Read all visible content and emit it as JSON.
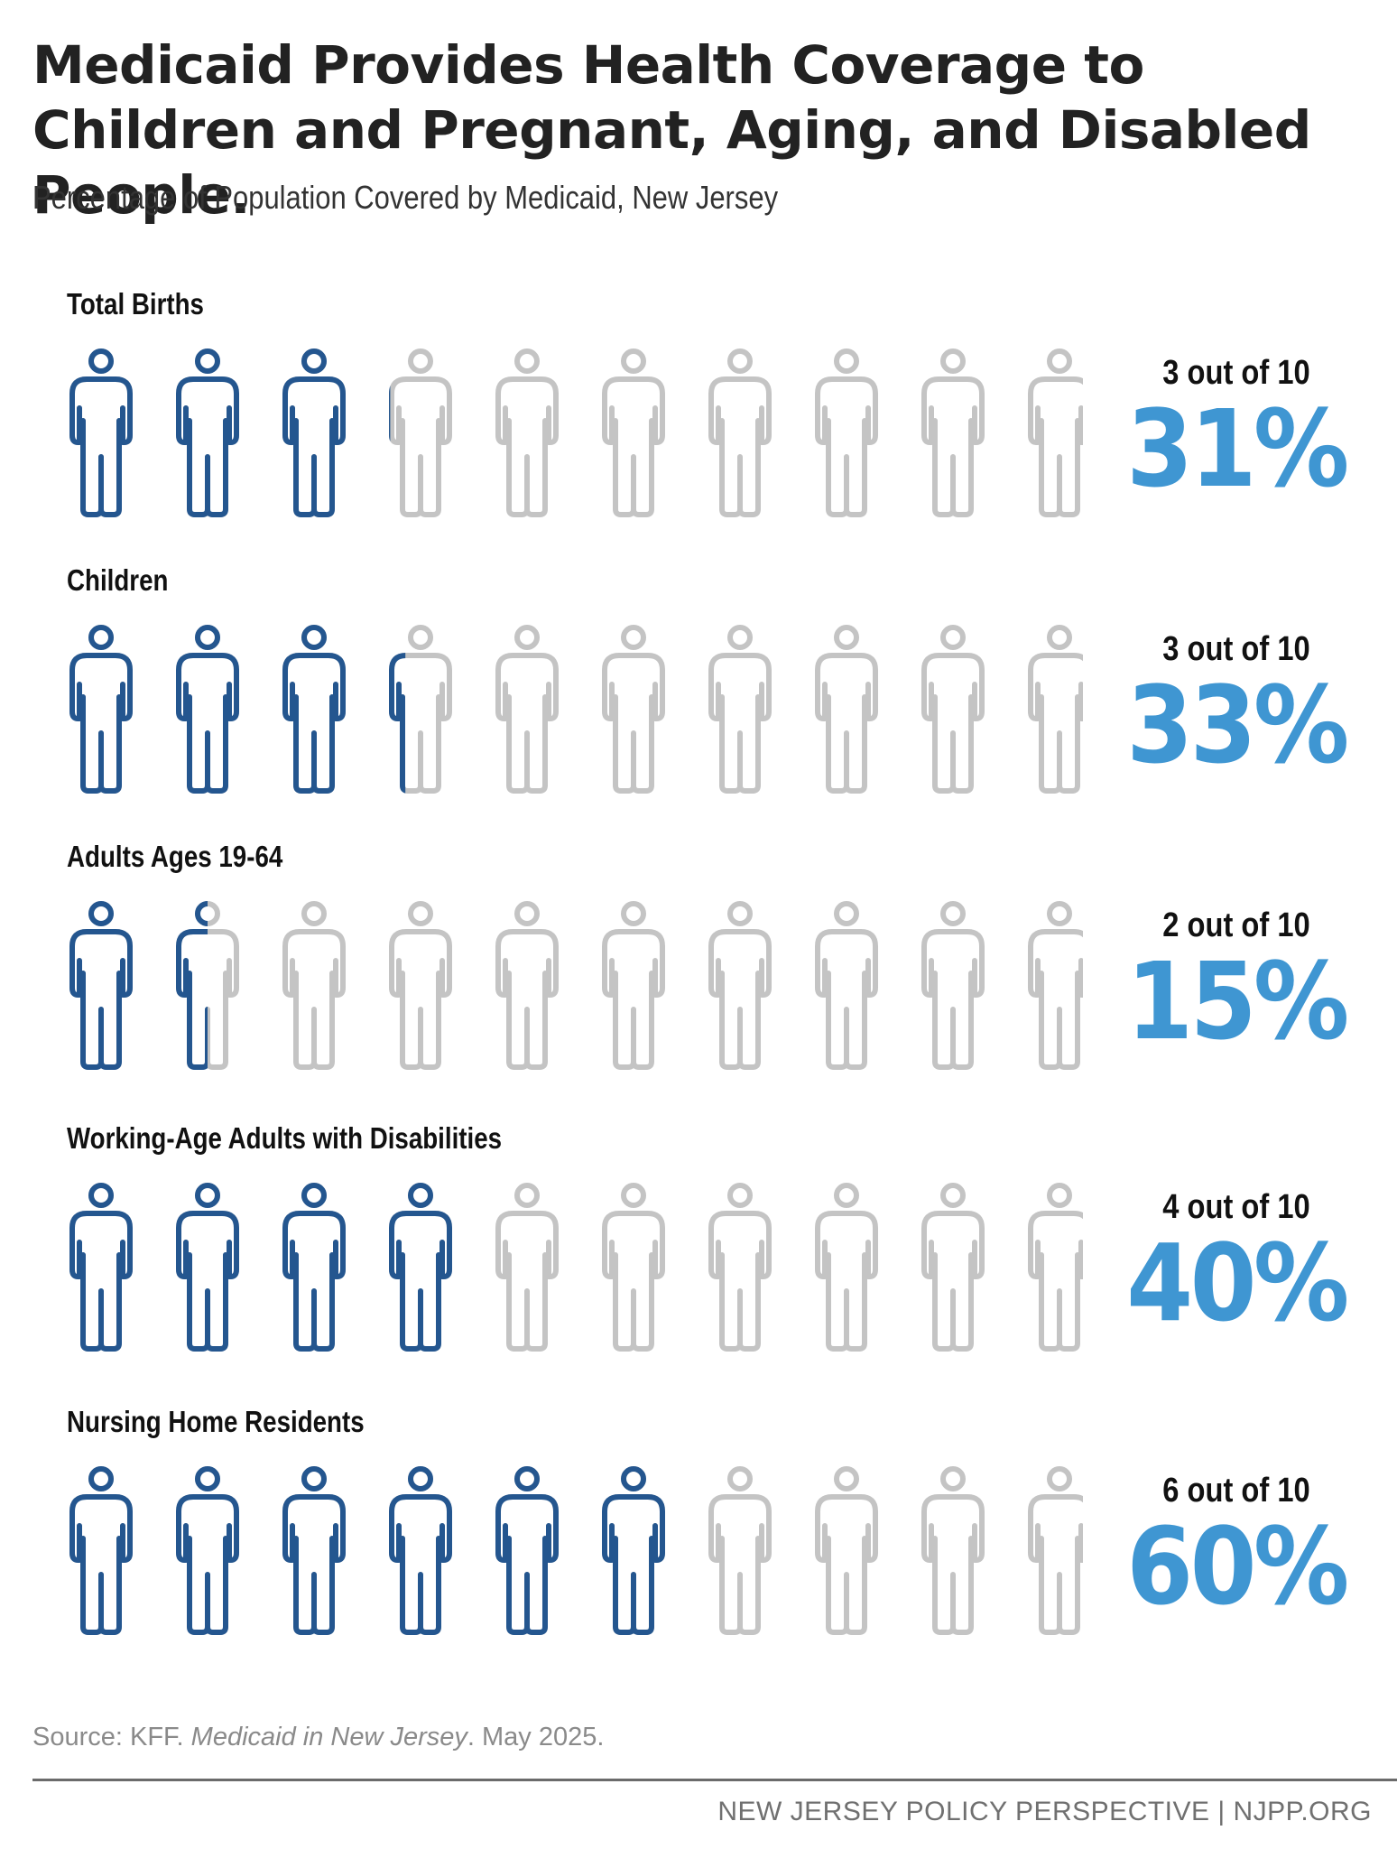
{
  "title": "Medicaid Provides Health Coverage to Children and Pregnant, Aging, and Disabled People.",
  "subtitle": "Percentage of Population Covered by Medicaid, New Jersey",
  "colors": {
    "covered": "#24568f",
    "uncovered": "#c4c4c4",
    "percent": "#3f96d2"
  },
  "chart_data": {
    "type": "isotype",
    "icons_per_row": 10,
    "icon": "person-icon",
    "rows": [
      {
        "label": "Total Births",
        "value": 31,
        "fraction": "3 out of 10",
        "percent": "31%"
      },
      {
        "label": "Children",
        "value": 33,
        "fraction": "3 out of 10",
        "percent": "33%"
      },
      {
        "label": "Adults Ages 19-64",
        "value": 15,
        "fraction": "2 out of 10",
        "percent": "15%"
      },
      {
        "label": "Working-Age Adults with Disabilities",
        "value": 40,
        "fraction": "4 out of 10",
        "percent": "40%"
      },
      {
        "label": "Nursing Home Residents",
        "value": 60,
        "fraction": "6 out of 10",
        "percent": "60%"
      }
    ]
  },
  "source": {
    "prefix": "Source: KFF. ",
    "italic": "Medicaid in New Jersey",
    "suffix": ". May 2025."
  },
  "footer": "NEW JERSEY POLICY PERSPECTIVE | NJPP.ORG"
}
